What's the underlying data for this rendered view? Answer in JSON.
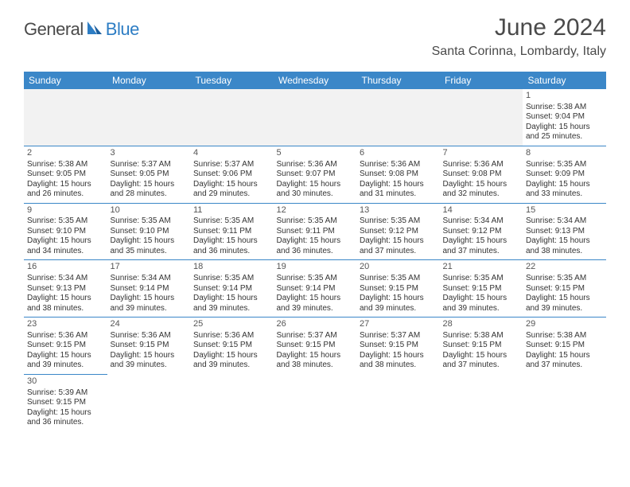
{
  "brand": {
    "part1": "General",
    "part2": "Blue"
  },
  "title": "June 2024",
  "location": "Santa Corinna, Lombardy, Italy",
  "colors": {
    "header_bg": "#3b87c8",
    "header_text": "#ffffff",
    "border": "#3b87c8",
    "text": "#333333",
    "brand_blue": "#2d7dc4",
    "brand_gray": "#4a4a4a",
    "empty_bg": "#f2f2f2"
  },
  "days": [
    "Sunday",
    "Monday",
    "Tuesday",
    "Wednesday",
    "Thursday",
    "Friday",
    "Saturday"
  ],
  "weeks": [
    [
      null,
      null,
      null,
      null,
      null,
      null,
      {
        "n": "1",
        "sunrise": "Sunrise: 5:38 AM",
        "sunset": "Sunset: 9:04 PM",
        "day1": "Daylight: 15 hours",
        "day2": "and 25 minutes."
      }
    ],
    [
      {
        "n": "2",
        "sunrise": "Sunrise: 5:38 AM",
        "sunset": "Sunset: 9:05 PM",
        "day1": "Daylight: 15 hours",
        "day2": "and 26 minutes."
      },
      {
        "n": "3",
        "sunrise": "Sunrise: 5:37 AM",
        "sunset": "Sunset: 9:05 PM",
        "day1": "Daylight: 15 hours",
        "day2": "and 28 minutes."
      },
      {
        "n": "4",
        "sunrise": "Sunrise: 5:37 AM",
        "sunset": "Sunset: 9:06 PM",
        "day1": "Daylight: 15 hours",
        "day2": "and 29 minutes."
      },
      {
        "n": "5",
        "sunrise": "Sunrise: 5:36 AM",
        "sunset": "Sunset: 9:07 PM",
        "day1": "Daylight: 15 hours",
        "day2": "and 30 minutes."
      },
      {
        "n": "6",
        "sunrise": "Sunrise: 5:36 AM",
        "sunset": "Sunset: 9:08 PM",
        "day1": "Daylight: 15 hours",
        "day2": "and 31 minutes."
      },
      {
        "n": "7",
        "sunrise": "Sunrise: 5:36 AM",
        "sunset": "Sunset: 9:08 PM",
        "day1": "Daylight: 15 hours",
        "day2": "and 32 minutes."
      },
      {
        "n": "8",
        "sunrise": "Sunrise: 5:35 AM",
        "sunset": "Sunset: 9:09 PM",
        "day1": "Daylight: 15 hours",
        "day2": "and 33 minutes."
      }
    ],
    [
      {
        "n": "9",
        "sunrise": "Sunrise: 5:35 AM",
        "sunset": "Sunset: 9:10 PM",
        "day1": "Daylight: 15 hours",
        "day2": "and 34 minutes."
      },
      {
        "n": "10",
        "sunrise": "Sunrise: 5:35 AM",
        "sunset": "Sunset: 9:10 PM",
        "day1": "Daylight: 15 hours",
        "day2": "and 35 minutes."
      },
      {
        "n": "11",
        "sunrise": "Sunrise: 5:35 AM",
        "sunset": "Sunset: 9:11 PM",
        "day1": "Daylight: 15 hours",
        "day2": "and 36 minutes."
      },
      {
        "n": "12",
        "sunrise": "Sunrise: 5:35 AM",
        "sunset": "Sunset: 9:11 PM",
        "day1": "Daylight: 15 hours",
        "day2": "and 36 minutes."
      },
      {
        "n": "13",
        "sunrise": "Sunrise: 5:35 AM",
        "sunset": "Sunset: 9:12 PM",
        "day1": "Daylight: 15 hours",
        "day2": "and 37 minutes."
      },
      {
        "n": "14",
        "sunrise": "Sunrise: 5:34 AM",
        "sunset": "Sunset: 9:12 PM",
        "day1": "Daylight: 15 hours",
        "day2": "and 37 minutes."
      },
      {
        "n": "15",
        "sunrise": "Sunrise: 5:34 AM",
        "sunset": "Sunset: 9:13 PM",
        "day1": "Daylight: 15 hours",
        "day2": "and 38 minutes."
      }
    ],
    [
      {
        "n": "16",
        "sunrise": "Sunrise: 5:34 AM",
        "sunset": "Sunset: 9:13 PM",
        "day1": "Daylight: 15 hours",
        "day2": "and 38 minutes."
      },
      {
        "n": "17",
        "sunrise": "Sunrise: 5:34 AM",
        "sunset": "Sunset: 9:14 PM",
        "day1": "Daylight: 15 hours",
        "day2": "and 39 minutes."
      },
      {
        "n": "18",
        "sunrise": "Sunrise: 5:35 AM",
        "sunset": "Sunset: 9:14 PM",
        "day1": "Daylight: 15 hours",
        "day2": "and 39 minutes."
      },
      {
        "n": "19",
        "sunrise": "Sunrise: 5:35 AM",
        "sunset": "Sunset: 9:14 PM",
        "day1": "Daylight: 15 hours",
        "day2": "and 39 minutes."
      },
      {
        "n": "20",
        "sunrise": "Sunrise: 5:35 AM",
        "sunset": "Sunset: 9:15 PM",
        "day1": "Daylight: 15 hours",
        "day2": "and 39 minutes."
      },
      {
        "n": "21",
        "sunrise": "Sunrise: 5:35 AM",
        "sunset": "Sunset: 9:15 PM",
        "day1": "Daylight: 15 hours",
        "day2": "and 39 minutes."
      },
      {
        "n": "22",
        "sunrise": "Sunrise: 5:35 AM",
        "sunset": "Sunset: 9:15 PM",
        "day1": "Daylight: 15 hours",
        "day2": "and 39 minutes."
      }
    ],
    [
      {
        "n": "23",
        "sunrise": "Sunrise: 5:36 AM",
        "sunset": "Sunset: 9:15 PM",
        "day1": "Daylight: 15 hours",
        "day2": "and 39 minutes."
      },
      {
        "n": "24",
        "sunrise": "Sunrise: 5:36 AM",
        "sunset": "Sunset: 9:15 PM",
        "day1": "Daylight: 15 hours",
        "day2": "and 39 minutes."
      },
      {
        "n": "25",
        "sunrise": "Sunrise: 5:36 AM",
        "sunset": "Sunset: 9:15 PM",
        "day1": "Daylight: 15 hours",
        "day2": "and 39 minutes."
      },
      {
        "n": "26",
        "sunrise": "Sunrise: 5:37 AM",
        "sunset": "Sunset: 9:15 PM",
        "day1": "Daylight: 15 hours",
        "day2": "and 38 minutes."
      },
      {
        "n": "27",
        "sunrise": "Sunrise: 5:37 AM",
        "sunset": "Sunset: 9:15 PM",
        "day1": "Daylight: 15 hours",
        "day2": "and 38 minutes."
      },
      {
        "n": "28",
        "sunrise": "Sunrise: 5:38 AM",
        "sunset": "Sunset: 9:15 PM",
        "day1": "Daylight: 15 hours",
        "day2": "and 37 minutes."
      },
      {
        "n": "29",
        "sunrise": "Sunrise: 5:38 AM",
        "sunset": "Sunset: 9:15 PM",
        "day1": "Daylight: 15 hours",
        "day2": "and 37 minutes."
      }
    ],
    [
      {
        "n": "30",
        "sunrise": "Sunrise: 5:39 AM",
        "sunset": "Sunset: 9:15 PM",
        "day1": "Daylight: 15 hours",
        "day2": "and 36 minutes."
      },
      null,
      null,
      null,
      null,
      null,
      null
    ]
  ]
}
